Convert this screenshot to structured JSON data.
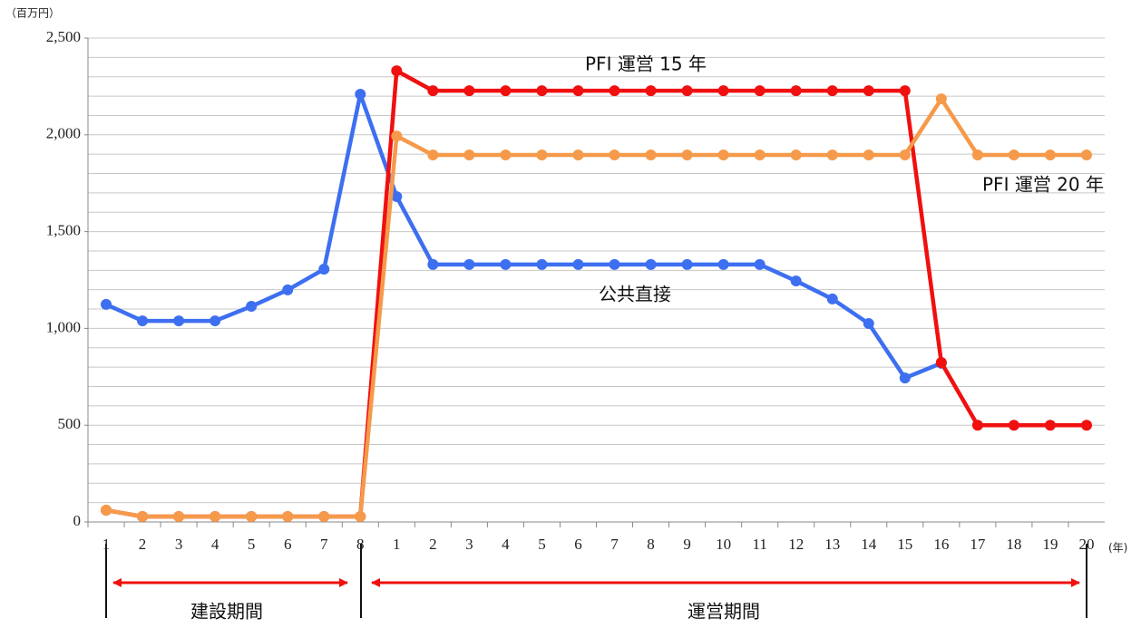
{
  "chart_data": {
    "type": "line",
    "y_unit": "（百万円）",
    "x_unit": "(年)",
    "categories": [
      "1",
      "2",
      "3",
      "4",
      "5",
      "6",
      "7",
      "8",
      "1",
      "2",
      "3",
      "4",
      "5",
      "6",
      "7",
      "8",
      "9",
      "10",
      "11",
      "12",
      "13",
      "14",
      "15",
      "16",
      "17",
      "18",
      "19",
      "20"
    ],
    "series": [
      {
        "name": "公共直接",
        "color": "#3d6ff0",
        "values": [
          1124,
          1039,
          1039,
          1039,
          1114,
          1199,
          1306,
          2210,
          1681,
          1330,
          1330,
          1330,
          1330,
          1330,
          1330,
          1330,
          1330,
          1330,
          1330,
          1245,
          1152,
          1025,
          744,
          820,
          null,
          null,
          null,
          null
        ]
      },
      {
        "name": "PFI 運営 15 年",
        "color": "#f01010",
        "values": [
          61,
          28,
          28,
          28,
          28,
          28,
          28,
          28,
          2331,
          2228,
          2228,
          2228,
          2228,
          2228,
          2228,
          2228,
          2228,
          2228,
          2228,
          2228,
          2228,
          2228,
          2228,
          824,
          500,
          500,
          500,
          500
        ]
      },
      {
        "name": "PFI 運営 20 年",
        "color": "#f59a4a",
        "values": [
          61,
          28,
          28,
          28,
          28,
          28,
          28,
          28,
          1994,
          1896,
          1896,
          1896,
          1896,
          1896,
          1896,
          1896,
          1896,
          1896,
          1896,
          1896,
          1896,
          1896,
          1896,
          2186,
          1896,
          1896,
          1896,
          1896
        ]
      }
    ],
    "ylim": [
      0,
      2500
    ],
    "yticks": [
      0,
      500,
      {
        "value": 1000,
        "label": "1,000"
      },
      {
        "value": 1500,
        "label": "1,500"
      },
      {
        "value": 2000,
        "label": "2,000"
      },
      {
        "value": 2500,
        "label": "2,500"
      }
    ],
    "ygrid": [
      100,
      200,
      300,
      400,
      500,
      600,
      700,
      800,
      900,
      1000,
      1100,
      1200,
      1300,
      1400,
      1500,
      1600,
      1700,
      1800,
      1900,
      2000,
      2100,
      2200,
      2300,
      2400,
      2500
    ],
    "periods": [
      "建設期間",
      "運営期間"
    ]
  }
}
